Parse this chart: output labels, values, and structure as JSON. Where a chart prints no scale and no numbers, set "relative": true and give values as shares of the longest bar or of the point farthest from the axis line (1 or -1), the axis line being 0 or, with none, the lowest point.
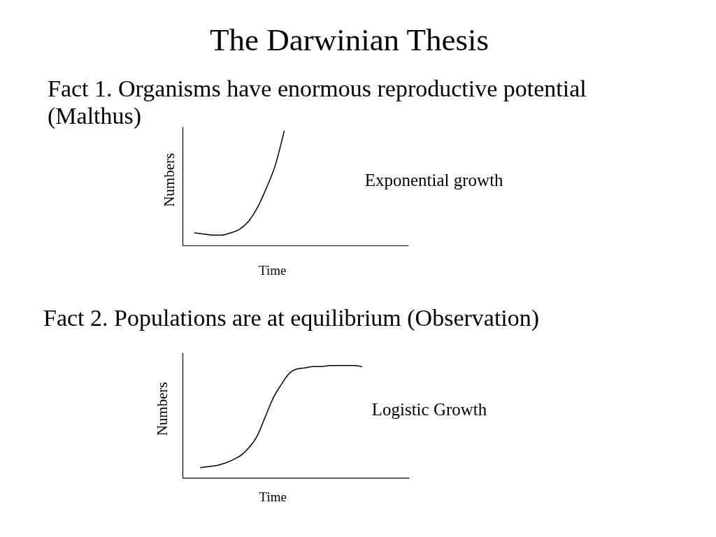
{
  "chart_data": [
    {
      "type": "line",
      "title": "The Darwinian Thesis",
      "subtitle": "Fact 1. Organisms have enormous reproductive potential (Malthus)",
      "xlabel": "Time",
      "ylabel": "Numbers",
      "annotations": [
        "Exponential growth"
      ],
      "relative": true,
      "categories": [
        null,
        null,
        null,
        null,
        null,
        null,
        null,
        null,
        null,
        null,
        null,
        null,
        null,
        null,
        null,
        null,
        null,
        null,
        null,
        null,
        null,
        null,
        null,
        null,
        null
      ],
      "series": [
        {
          "color": "#000000",
          "values": [
            null,
            0.11,
            0.1,
            0.09,
            0.09,
            0.11,
            0.14,
            0.21,
            0.33,
            0.5,
            0.7,
            1.0,
            null,
            null,
            null,
            null,
            null,
            null,
            null,
            null,
            null,
            null,
            null,
            null,
            null
          ]
        }
      ]
    },
    {
      "type": "line",
      "title": "Fact 2. Populations are at equilibrium (Observation)",
      "xlabel": "Time",
      "ylabel": "Numbers",
      "annotations": [
        "Logistic Growth"
      ],
      "relative": true,
      "categories": [
        null,
        null,
        null,
        null,
        null,
        null,
        null,
        null,
        null,
        null,
        null,
        null,
        null,
        null,
        null,
        null,
        null,
        null,
        null,
        null,
        null,
        null,
        null,
        null,
        null,
        null,
        null,
        null
      ],
      "series": [
        {
          "color": "#000000",
          "values": [
            null,
            null,
            0.09,
            0.1,
            0.11,
            0.13,
            0.16,
            0.2,
            0.27,
            0.37,
            0.54,
            0.71,
            0.83,
            0.93,
            0.97,
            0.98,
            0.99,
            0.99,
            1.0,
            1.0,
            1.0,
            1.0,
            0.99,
            null,
            null,
            null,
            null,
            null
          ]
        }
      ]
    }
  ]
}
